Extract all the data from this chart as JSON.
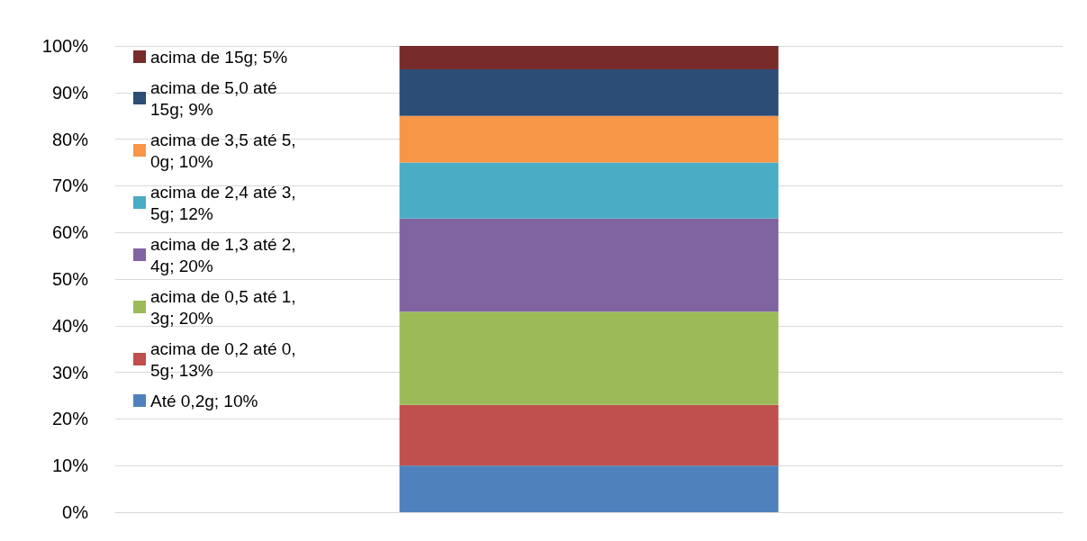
{
  "chart_data": {
    "type": "bar",
    "stacked": true,
    "categories": [
      null
    ],
    "series": [
      {
        "name": "Até 0,2g; 10%",
        "color": "#4f81bd",
        "values": [
          10
        ]
      },
      {
        "name": "acima de 0,2 até 0,5g; 13%",
        "color": "#c0504d",
        "values": [
          13
        ]
      },
      {
        "name": "acima de 0,5 até 1,3g; 20%",
        "color": "#9bbb59",
        "values": [
          20
        ]
      },
      {
        "name": "acima de 1,3 até 2,4g; 20%",
        "color": "#8064a2",
        "values": [
          20
        ]
      },
      {
        "name": "acima de 2,4 até 3,5g; 12%",
        "color": "#4bacc6",
        "values": [
          12
        ]
      },
      {
        "name": "acima de 3,5 até 5,0g; 10%",
        "color": "#f79646",
        "values": [
          10
        ]
      },
      {
        "name": "acima de 5,0 até 15g; 9%",
        "color": "#2c4d75",
        "values": [
          10
        ]
      },
      {
        "name": "acima de 15g; 5%",
        "color": "#772c2a",
        "values": [
          5
        ]
      }
    ],
    "ylim": [
      0,
      100
    ],
    "yticks": [
      {
        "value": 0,
        "label": "0%"
      },
      {
        "value": 10,
        "label": "10%"
      },
      {
        "value": 20,
        "label": "20%"
      },
      {
        "value": 30,
        "label": "30%"
      },
      {
        "value": 40,
        "label": "40%"
      },
      {
        "value": 50,
        "label": "50%"
      },
      {
        "value": 60,
        "label": "60%"
      },
      {
        "value": 70,
        "label": "70%"
      },
      {
        "value": 80,
        "label": "80%"
      },
      {
        "value": 90,
        "label": "90%"
      },
      {
        "value": 100,
        "label": "100%"
      }
    ],
    "grid": "y",
    "legend": "left"
  }
}
